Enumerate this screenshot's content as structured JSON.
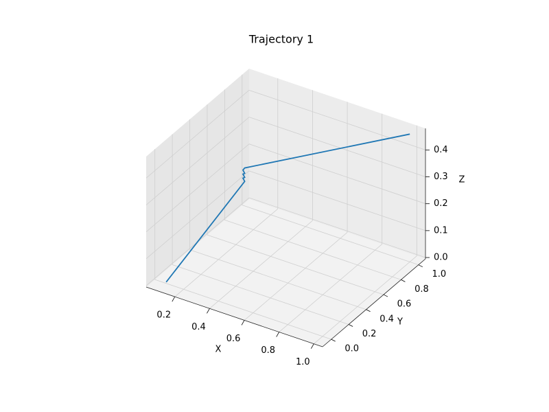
{
  "chart_data": {
    "type": "line3d",
    "title": "Trajectory 1",
    "x_label": "X",
    "y_label": "Y",
    "z_label": "Z",
    "x": [
      0.1,
      0.1,
      0.09,
      0.1,
      0.09,
      0.1,
      0.09,
      0.1,
      1.0
    ],
    "y": [
      0.0,
      0.9,
      0.9,
      0.9,
      0.9,
      0.9,
      0.9,
      0.9,
      1.0
    ],
    "z": [
      0.0,
      0.125,
      0.135,
      0.14,
      0.15,
      0.155,
      0.165,
      0.175,
      0.47
    ],
    "color": "#1f77b4",
    "xlim": [
      0.035,
      1.05
    ],
    "ylim": [
      -0.1,
      1.08
    ],
    "zlim": [
      -0.005,
      0.48
    ],
    "xticks": [
      0.2,
      0.4,
      0.6,
      0.8,
      {
        "value": 1,
        "label": "1.0"
      }
    ],
    "yticks": [
      {
        "value": 0,
        "label": "0.0"
      },
      0.2,
      0.4,
      0.6,
      0.8,
      {
        "value": 1,
        "label": "1.0"
      }
    ],
    "zticks": [
      {
        "value": 0,
        "label": "0.0"
      },
      0.1,
      0.2,
      0.3,
      0.4
    ],
    "grid": true
  }
}
